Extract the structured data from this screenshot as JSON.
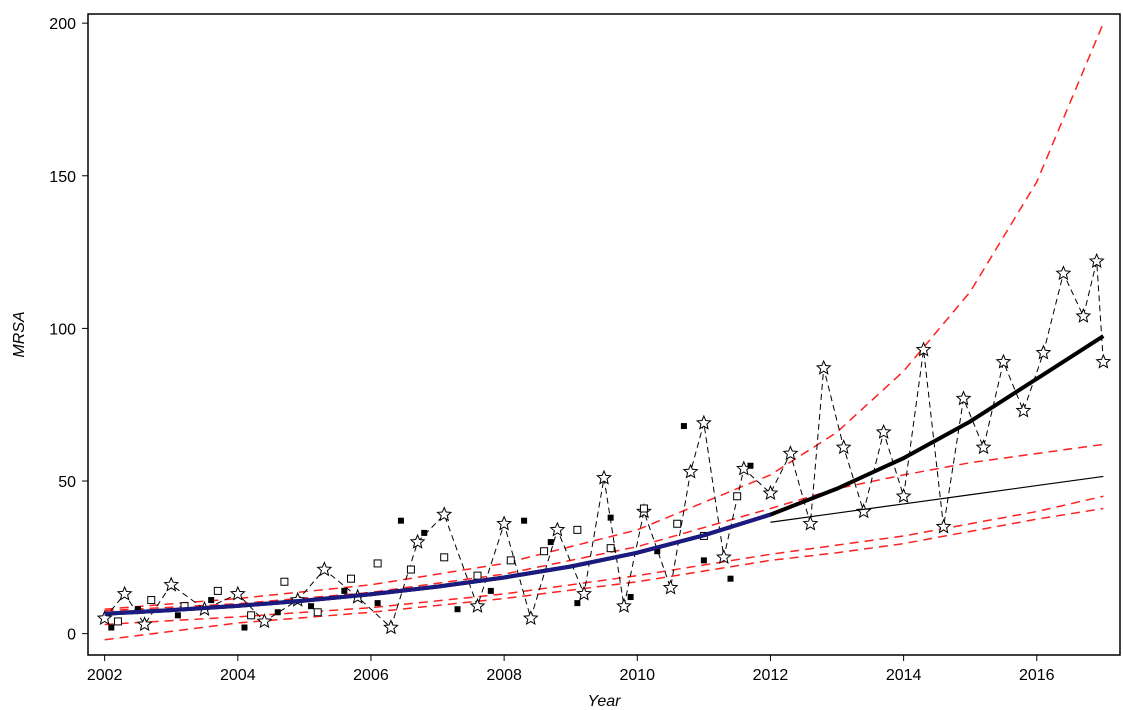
{
  "chart_data": {
    "type": "line",
    "xlabel": "Year",
    "ylabel": "MRSA",
    "xlim": [
      2001.75,
      2017.25
    ],
    "ylim": [
      -7,
      203
    ],
    "x_ticks": [
      2002,
      2004,
      2006,
      2008,
      2010,
      2012,
      2014,
      2016
    ],
    "y_ticks": [
      0,
      50,
      100,
      150,
      200
    ],
    "grid": false,
    "legend": "none",
    "colors": {
      "fit": "#000000",
      "fit_observed": "#1a1a80",
      "ci": "#ff2020",
      "markers": "#000000"
    },
    "series": [
      {
        "style": "thick-solid-fit",
        "x": [
          2002,
          2003,
          2004,
          2005,
          2006,
          2007,
          2008,
          2009,
          2010,
          2011,
          2012,
          2013,
          2014,
          2015,
          2016,
          2017
        ],
        "values": [
          6.5,
          7.7,
          9.1,
          10.8,
          12.9,
          15.4,
          18.4,
          22.0,
          26.5,
          32.2,
          39.0,
          47.5,
          57.5,
          69.5,
          83.5,
          97.5
        ]
      },
      {
        "style": "thin-solid-linear-projection",
        "x": [
          2012,
          2013,
          2014,
          2015,
          2016,
          2017
        ],
        "values": [
          36.5,
          39.5,
          42.5,
          45.5,
          48.5,
          51.5
        ]
      },
      {
        "style": "dashed-upper-prediction-band",
        "x": [
          2002,
          2004,
          2006,
          2008,
          2010,
          2012,
          2013,
          2014,
          2015,
          2016,
          2017
        ],
        "values": [
          8,
          11.5,
          16,
          23,
          34,
          52,
          66,
          86,
          112,
          148,
          200
        ]
      },
      {
        "style": "dashed-upper-confidence-band",
        "x": [
          2002,
          2004,
          2006,
          2008,
          2010,
          2012,
          2013,
          2014,
          2015,
          2016,
          2017
        ],
        "values": [
          7.5,
          9.8,
          13.5,
          19.5,
          28.5,
          41,
          47.5,
          52,
          56,
          59,
          62
        ]
      },
      {
        "style": "dashed-lower-band-1",
        "x": [
          2002,
          2004,
          2006,
          2008,
          2010,
          2012,
          2013,
          2014,
          2015,
          2016,
          2017
        ],
        "values": [
          3,
          5.5,
          8.5,
          13,
          19,
          26,
          29,
          32,
          36,
          40,
          45
        ]
      },
      {
        "style": "dashed-lower-band-2",
        "x": [
          2002,
          2004,
          2006,
          2008,
          2010,
          2012,
          2013,
          2014,
          2015,
          2016,
          2017
        ],
        "values": [
          -2,
          3.5,
          7,
          11.5,
          17,
          24,
          26.5,
          29.5,
          33.5,
          37.5,
          41
        ]
      },
      {
        "style": "stars-dashed-observed",
        "x": [
          2002.0,
          2002.3,
          2002.6,
          2003.0,
          2003.5,
          2004.0,
          2004.4,
          2004.9,
          2005.3,
          2005.8,
          2006.3,
          2006.7,
          2007.1,
          2007.6,
          2008.0,
          2008.4,
          2008.8,
          2009.2,
          2009.5,
          2009.8,
          2010.1,
          2010.5,
          2010.8,
          2011.0,
          2011.3,
          2011.6,
          2012.0,
          2012.3,
          2012.6,
          2012.8,
          2013.1,
          2013.4,
          2013.7,
          2014.0,
          2014.3,
          2014.6,
          2014.9,
          2015.2,
          2015.5,
          2015.8,
          2016.1,
          2016.4,
          2016.7,
          2016.9,
          2017.0
        ],
        "values": [
          5,
          13,
          3,
          16,
          8,
          13,
          4,
          11,
          21,
          12,
          2,
          30,
          39,
          9,
          36,
          5,
          34,
          13,
          51,
          9,
          40,
          15,
          53,
          69,
          25,
          54,
          46,
          59,
          36,
          87,
          61,
          40,
          66,
          45,
          93,
          35,
          77,
          61,
          89,
          73,
          92,
          118,
          104,
          122,
          89
        ]
      },
      {
        "style": "filled-squares-observed",
        "x": [
          2002.1,
          2002.5,
          2003.1,
          2003.6,
          2004.1,
          2004.6,
          2005.1,
          2005.6,
          2006.1,
          2006.45,
          2006.8,
          2007.3,
          2007.8,
          2008.3,
          2008.7,
          2009.1,
          2009.6,
          2009.9,
          2010.3,
          2010.7,
          2011.0,
          2011.4,
          2011.7
        ],
        "values": [
          2,
          8,
          6,
          11,
          2,
          7,
          9,
          14,
          10,
          37,
          33,
          8,
          14,
          37,
          30,
          10,
          38,
          12,
          27,
          68,
          24,
          18,
          55
        ]
      },
      {
        "style": "hollow-squares-observed",
        "x": [
          2002.2,
          2002.7,
          2003.2,
          2003.7,
          2004.2,
          2004.7,
          2005.2,
          2005.7,
          2006.1,
          2006.6,
          2007.1,
          2007.6,
          2008.1,
          2008.6,
          2009.1,
          2009.6,
          2010.1,
          2010.6,
          2011.0,
          2011.5
        ],
        "values": [
          4,
          11,
          9,
          14,
          6,
          17,
          7,
          18,
          23,
          21,
          25,
          19,
          24,
          27,
          34,
          28,
          41,
          36,
          32,
          45
        ]
      }
    ]
  }
}
